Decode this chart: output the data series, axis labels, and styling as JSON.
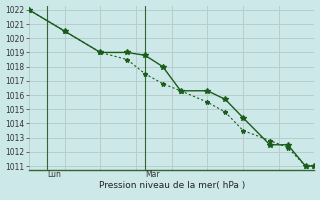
{
  "xlabel": "Pression niveau de la mer( hPa )",
  "bg_color": "#cce8e8",
  "grid_color": "#b8cccc",
  "line_color": "#1a5c1a",
  "ylim": [
    1011,
    1022
  ],
  "yticks": [
    1011,
    1012,
    1013,
    1014,
    1015,
    1016,
    1017,
    1018,
    1019,
    1020,
    1021,
    1022
  ],
  "xlim": [
    0,
    16
  ],
  "xticks": [
    0,
    2,
    4,
    6,
    8,
    10,
    12,
    14,
    16
  ],
  "lun_x": 1,
  "mar_x": 6.5,
  "series1_x": [
    0,
    2,
    4,
    5.5,
    6.5,
    7.5,
    8.5,
    10,
    11,
    12,
    13.5,
    14.5,
    15.5,
    16
  ],
  "series1_y": [
    1022,
    1020.5,
    1019.0,
    1019.0,
    1018.8,
    1018.0,
    1016.3,
    1016.3,
    1015.7,
    1014.4,
    1012.5,
    1012.5,
    1011.0,
    1011.0
  ],
  "series2_x": [
    0,
    2,
    4,
    5.5,
    6.5,
    7.5,
    8.5,
    10,
    11,
    12,
    13.5,
    14.5,
    15.5,
    16
  ],
  "series2_y": [
    1022,
    1020.5,
    1019.0,
    1018.5,
    1017.5,
    1016.8,
    1016.3,
    1015.5,
    1014.8,
    1013.5,
    1012.8,
    1012.3,
    1011.0,
    1011.0
  ]
}
